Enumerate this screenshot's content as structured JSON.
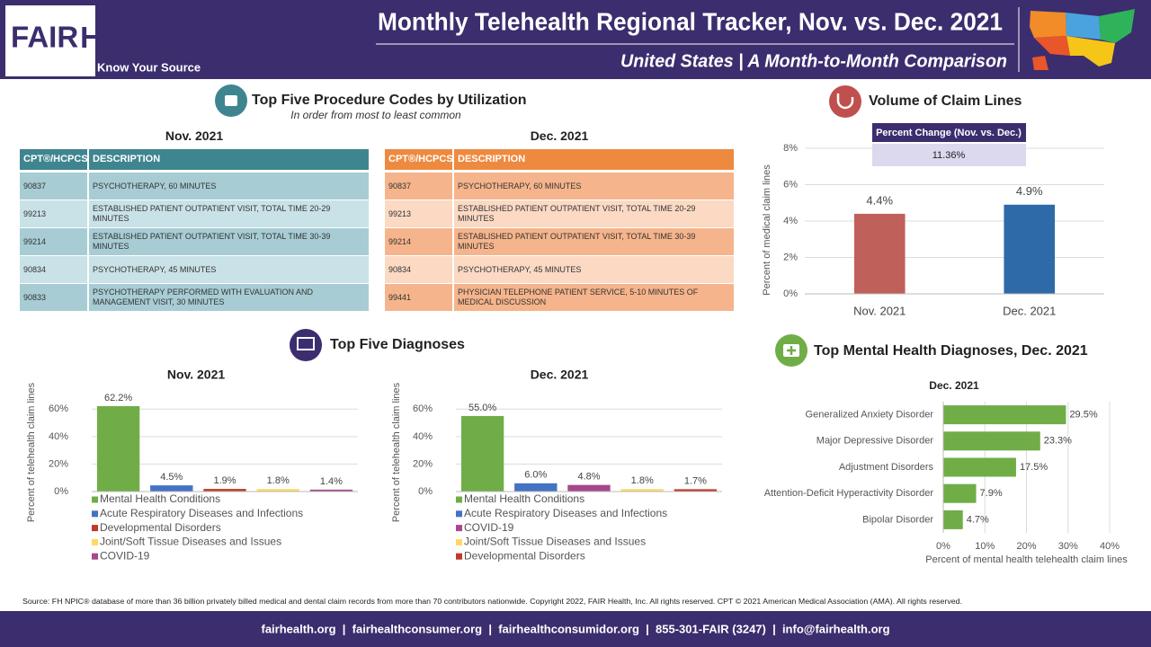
{
  "header": {
    "logo_fair": "FAIR",
    "logo_health": "Health",
    "logo_tagline": "Know Your Source",
    "title": "Monthly Telehealth Regional Tracker, Nov. vs. Dec. 2021",
    "subtitle": "United States | A Month-to-Month Comparison"
  },
  "procedures": {
    "title": "Top Five Procedure Codes by Utilization",
    "subtitle": "In order from most to least common",
    "tables": [
      {
        "heading": "Nov. 2021",
        "columns": [
          "CPT®/HCPCS",
          "DESCRIPTION"
        ],
        "rows": [
          [
            "90837",
            "PSYCHOTHERAPY, 60 MINUTES"
          ],
          [
            "99213",
            "ESTABLISHED PATIENT OUTPATIENT VISIT, TOTAL TIME 20-29 MINUTES"
          ],
          [
            "99214",
            "ESTABLISHED PATIENT OUTPATIENT VISIT, TOTAL TIME 30-39 MINUTES"
          ],
          [
            "90834",
            "PSYCHOTHERAPY, 45 MINUTES"
          ],
          [
            "90833",
            "PSYCHOTHERAPY PERFORMED WITH EVALUATION AND MANAGEMENT VISIT, 30 MINUTES"
          ]
        ]
      },
      {
        "heading": "Dec. 2021",
        "columns": [
          "CPT®/HCPCS",
          "DESCRIPTION"
        ],
        "rows": [
          [
            "90837",
            "PSYCHOTHERAPY, 60 MINUTES"
          ],
          [
            "99213",
            "ESTABLISHED PATIENT OUTPATIENT VISIT, TOTAL TIME 20-29 MINUTES"
          ],
          [
            "99214",
            "ESTABLISHED PATIENT OUTPATIENT VISIT, TOTAL TIME 30-39 MINUTES"
          ],
          [
            "90834",
            "PSYCHOTHERAPY, 45 MINUTES"
          ],
          [
            "99441",
            "PHYSICIAN TELEPHONE PATIENT SERVICE, 5-10 MINUTES OF MEDICAL DISCUSSION"
          ]
        ]
      }
    ]
  },
  "diagnoses_title": "Top Five Diagnoses",
  "chart_data": [
    {
      "type": "bar",
      "title": "Volume of Claim Lines",
      "annotation_header": "Percent Change (Nov. vs. Dec.)",
      "annotation": "11.36%",
      "y_label": "Percent of medical claim lines",
      "categories": [
        "Nov. 2021",
        "Dec. 2021"
      ],
      "values": [
        4.4,
        4.9
      ],
      "value_labels": [
        "4.4%",
        "4.9%"
      ],
      "colors": [
        "#c0605a",
        "#2e6aa8"
      ],
      "ylim": [
        0,
        8
      ],
      "yticks": [
        {
          "value": 0,
          "label": "0%"
        },
        {
          "value": 2,
          "label": "2%"
        },
        {
          "value": 4,
          "label": "4%"
        },
        {
          "value": 6,
          "label": "6%"
        },
        {
          "value": 8,
          "label": "8%"
        }
      ],
      "grid": true
    },
    {
      "type": "bar",
      "subtitle": "Nov. 2021",
      "y_label": "Percent of telehealth claim lines",
      "categories": [
        "Mental Health Conditions",
        "Acute Respiratory Diseases and Infections",
        "Developmental Disorders",
        "Joint/Soft Tissue Diseases and Issues",
        "COVID-19"
      ],
      "values": [
        62.2,
        4.5,
        1.9,
        1.8,
        1.4
      ],
      "value_labels": [
        "62.2%",
        "4.5%",
        "1.9%",
        "1.8%",
        "1.4%"
      ],
      "colors": [
        "#70ad47",
        "#4472c4",
        "#c0392b",
        "#ffd966",
        "#a5498a"
      ],
      "ylim": [
        0,
        70
      ],
      "yticks": [
        {
          "value": 0,
          "label": "0%"
        },
        {
          "value": 20,
          "label": "20%"
        },
        {
          "value": 40,
          "label": "40%"
        },
        {
          "value": 60,
          "label": "60%"
        }
      ],
      "grid": true,
      "legend": "bottom"
    },
    {
      "type": "bar",
      "subtitle": "Dec. 2021",
      "y_label": "Percent of telehealth claim lines",
      "categories": [
        "Mental Health Conditions",
        "Acute Respiratory Diseases and Infections",
        "COVID-19",
        "Joint/Soft Tissue Diseases and Issues",
        "Developmental Disorders"
      ],
      "values": [
        55.0,
        6.0,
        4.8,
        1.8,
        1.7
      ],
      "value_labels": [
        "55.0%",
        "6.0%",
        "4.8%",
        "1.8%",
        "1.7%"
      ],
      "colors": [
        "#70ad47",
        "#4472c4",
        "#a5498a",
        "#ffd966",
        "#c0392b"
      ],
      "ylim": [
        0,
        70
      ],
      "yticks": [
        {
          "value": 0,
          "label": "0%"
        },
        {
          "value": 20,
          "label": "20%"
        },
        {
          "value": 40,
          "label": "40%"
        },
        {
          "value": 60,
          "label": "60%"
        }
      ],
      "grid": true,
      "legend": "bottom"
    },
    {
      "type": "hbar",
      "title": "Top Mental Health Diagnoses, Dec. 2021",
      "subtitle": "Dec. 2021",
      "x_label": "Percent of mental health telehealth claim lines",
      "categories": [
        "Generalized Anxiety Disorder",
        "Major Depressive Disorder",
        "Adjustment Disorders",
        "Attention-Deficit Hyperactivity Disorder",
        "Bipolar Disorder"
      ],
      "values": [
        29.5,
        23.3,
        17.5,
        7.9,
        4.7
      ],
      "value_labels": [
        "29.5%",
        "23.3%",
        "17.5%",
        "7.9%",
        "4.7%"
      ],
      "color": "#70ad47",
      "xlim": [
        0,
        40
      ],
      "xticks": [
        {
          "value": 0,
          "label": "0%"
        },
        {
          "value": 10,
          "label": "10%"
        },
        {
          "value": 20,
          "label": "20%"
        },
        {
          "value": 30,
          "label": "30%"
        },
        {
          "value": 40,
          "label": "40%"
        }
      ],
      "grid": true
    }
  ],
  "footer": {
    "source": "Source: FH NPIC® database of more than 36 billion privately billed medical and dental claim records from more than 70 contributors nationwide. Copyright 2022, FAIR Health, Inc. All rights reserved. CPT © 2021 American Medical Association (AMA). All rights reserved.",
    "contact": "fairhealth.org  |  fairhealthconsumer.org  |  fairhealthconsumidor.org  |  855-301-FAIR (3247)  |  info@fairhealth.org"
  }
}
